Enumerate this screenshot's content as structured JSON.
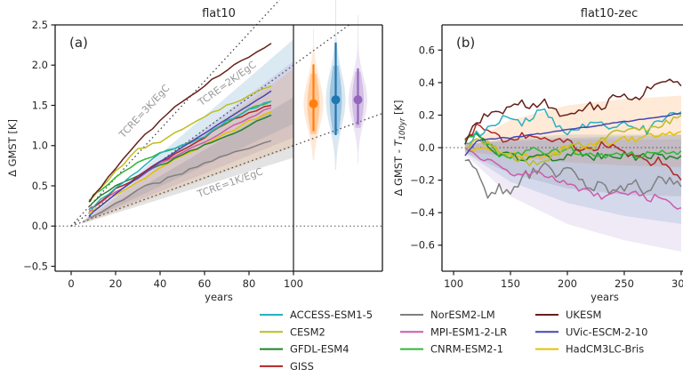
{
  "chart_data": [
    {
      "type": "line",
      "id": "a",
      "panel_label": "(a)",
      "title": "flat10",
      "xlabel": "years",
      "ylabel": "Δ GMST [K]",
      "xlim": [
        -7.2,
        140
      ],
      "ylim": [
        -0.561,
        2.5
      ],
      "xticks": {
        "values": [
          0,
          20,
          40,
          60,
          80,
          100
        ],
        "labels": [
          "0",
          "20",
          "40",
          "60",
          "80",
          "100"
        ]
      },
      "yticks": {
        "values": [
          -0.5,
          0.0,
          0.5,
          1.0,
          1.5,
          2.0,
          2.5
        ],
        "labels": [
          "−0.5",
          "0.0",
          "0.5",
          "1.0",
          "1.5",
          "2.0",
          "2.5"
        ]
      },
      "zero_line": 0.0,
      "vline_year": 100,
      "reference_lines": [
        {
          "label": "TCRE=3K/EgC",
          "slope_K_per_yr": 0.03,
          "start_year": 0,
          "end_year": 94,
          "label_x": 34,
          "label_y": 1.4,
          "label_rot": -47
        },
        {
          "label": "TCRE=2K/EgC",
          "slope_K_per_yr": 0.02,
          "start_year": 0,
          "end_year": 125,
          "label_x": 71,
          "label_y": 1.74,
          "label_rot": -36
        },
        {
          "label": "TCRE=1K/EgC",
          "slope_K_per_yr": 0.01,
          "start_year": 0,
          "end_year": 140,
          "label_x": 72,
          "label_y": 0.5,
          "label_rot": -20
        }
      ],
      "bands": [
        {
          "name": "band-blue",
          "color": "#1f77b4",
          "alpha": 0.16,
          "x": [
            5,
            100
          ],
          "top": [
            0.06,
            2.32
          ],
          "bottom": [
            0.04,
            1.27
          ]
        },
        {
          "name": "band-purple",
          "color": "#9467bd",
          "alpha": 0.16,
          "x": [
            5,
            100
          ],
          "top": [
            0.05,
            2.05
          ],
          "bottom": [
            0.04,
            1.1
          ]
        },
        {
          "name": "band-tan",
          "color": "#ff7f0e",
          "alpha": 0.15,
          "x": [
            5,
            100
          ],
          "top": [
            0.05,
            1.95
          ],
          "bottom": [
            0.03,
            0.98
          ]
        },
        {
          "name": "band-gray",
          "color": "#808080",
          "alpha": 0.22,
          "x": [
            5,
            100
          ],
          "top": [
            0.05,
            1.6
          ],
          "bottom": [
            0.03,
            0.85
          ]
        }
      ],
      "violins": [
        {
          "name": "violin-orange",
          "color": "#ff7f0e",
          "center_year": 109,
          "median": 1.52,
          "bar": [
            1.18,
            2.01
          ],
          "range": [
            0.82,
            2.45
          ],
          "sigma": 0.3,
          "max_width_years": 4.4
        },
        {
          "name": "violin-blue",
          "color": "#1f77b4",
          "center_year": 119,
          "median": 1.57,
          "bar": [
            1.13,
            2.28
          ],
          "range": [
            0.7,
            3.05
          ],
          "sigma": 0.34,
          "max_width_years": 4.4
        },
        {
          "name": "violin-purple",
          "color": "#9467bd",
          "center_year": 129,
          "median": 1.57,
          "bar": [
            1.26,
            1.96
          ],
          "range": [
            0.78,
            2.62
          ],
          "sigma": 0.28,
          "max_width_years": 4.2
        }
      ],
      "x": [
        8,
        10,
        20,
        30,
        40,
        50,
        60,
        70,
        80,
        90
      ],
      "series": [
        {
          "name": "NorESM2-LM",
          "color": "#7f7f7f",
          "jitter": 0.022,
          "values": [
            0.1,
            0.12,
            0.28,
            0.45,
            0.55,
            0.65,
            0.78,
            0.88,
            0.98,
            1.06
          ]
        },
        {
          "name": "HadCM3LC-Bris",
          "color": "#e5c100",
          "jitter": 0.015,
          "values": [
            0.15,
            0.2,
            0.38,
            0.55,
            0.72,
            0.88,
            1.0,
            1.15,
            1.3,
            1.42
          ]
        },
        {
          "name": "GFDL-ESM4",
          "color": "#1e8229",
          "jitter": 0.015,
          "values": [
            0.25,
            0.3,
            0.5,
            0.62,
            0.75,
            0.88,
            1.0,
            1.12,
            1.25,
            1.38
          ]
        },
        {
          "name": "MPI-ESM1-2-LR",
          "color": "#cd5ba9",
          "jitter": 0.013,
          "values": [
            0.18,
            0.22,
            0.42,
            0.6,
            0.78,
            0.92,
            1.05,
            1.2,
            1.35,
            1.47
          ]
        },
        {
          "name": "GISS",
          "color": "#b02525",
          "jitter": 0.016,
          "values": [
            0.2,
            0.25,
            0.45,
            0.62,
            0.8,
            0.95,
            1.1,
            1.28,
            1.4,
            1.5
          ]
        },
        {
          "name": "CNRM-ESM2-1",
          "color": "#2eb837",
          "jitter": 0.015,
          "values": [
            0.32,
            0.38,
            0.6,
            0.78,
            0.9,
            1.0,
            1.12,
            1.28,
            1.45,
            1.55
          ]
        },
        {
          "name": "ACCESS-ESM1-5",
          "color": "#2ab0bc",
          "jitter": 0.015,
          "values": [
            0.2,
            0.25,
            0.48,
            0.68,
            0.9,
            1.0,
            1.1,
            1.3,
            1.45,
            1.55
          ]
        },
        {
          "name": "CESM2",
          "color": "#bcbd22",
          "jitter": 0.015,
          "values": [
            0.3,
            0.36,
            0.68,
            0.95,
            1.05,
            1.2,
            1.35,
            1.5,
            1.62,
            1.74
          ]
        },
        {
          "name": "UVic-ESCM-2-10",
          "color": "#4545b2",
          "jitter": 0.003,
          "values": [
            0.12,
            0.18,
            0.4,
            0.6,
            0.8,
            0.98,
            1.15,
            1.33,
            1.5,
            1.68
          ]
        },
        {
          "name": "UKESM",
          "color": "#67201a",
          "jitter": 0.018,
          "values": [
            0.3,
            0.38,
            0.72,
            1.05,
            1.3,
            1.55,
            1.75,
            1.95,
            2.1,
            2.27
          ]
        }
      ]
    },
    {
      "type": "line",
      "id": "b",
      "panel_label": "(b)",
      "title": "flat10-zec",
      "xlabel": "years",
      "ylabel_parts": {
        "pre": "Δ GMST - ",
        "t": "T",
        "sub": "100yr",
        "post": " [K]"
      },
      "xlim": [
        89.8,
        302.4
      ],
      "ylim": [
        -0.76,
        0.755
      ],
      "xticks": {
        "values": [
          100,
          150,
          200,
          250,
          300
        ],
        "labels": [
          "100",
          "150",
          "200",
          "250",
          "300"
        ]
      },
      "yticks": {
        "values": [
          -0.6,
          -0.4,
          -0.2,
          0.0,
          0.2,
          0.4,
          0.6
        ],
        "labels": [
          "−0.6",
          "−0.4",
          "−0.2",
          "0.0",
          "0.2",
          "0.4",
          "0.6"
        ]
      },
      "zero_line": 0.0,
      "reference_lines": [],
      "bands": [
        {
          "name": "band-orange",
          "color": "#ff7f0e",
          "alpha": 0.16,
          "x": [
            110,
            150,
            200,
            250,
            300
          ],
          "top": [
            0.02,
            0.17,
            0.26,
            0.3,
            0.32
          ],
          "bottom": [
            -0.02,
            -0.06,
            -0.09,
            -0.11,
            -0.12
          ]
        },
        {
          "name": "band-gray",
          "color": "#808080",
          "alpha": 0.18,
          "x": [
            110,
            150,
            200,
            250,
            300
          ],
          "top": [
            0.02,
            0.06,
            0.08,
            0.08,
            0.08
          ],
          "bottom": [
            -0.03,
            -0.16,
            -0.25,
            -0.29,
            -0.3
          ]
        },
        {
          "name": "band-blue",
          "color": "#1f77b4",
          "alpha": 0.14,
          "x": [
            110,
            150,
            200,
            250,
            300
          ],
          "top": [
            0.02,
            0.05,
            0.06,
            0.07,
            0.08
          ],
          "bottom": [
            -0.03,
            -0.21,
            -0.34,
            -0.42,
            -0.47
          ]
        },
        {
          "name": "band-purple",
          "color": "#9467bd",
          "alpha": 0.14,
          "x": [
            110,
            150,
            200,
            250,
            300
          ],
          "top": [
            0.02,
            0.04,
            0.05,
            0.05,
            0.05
          ],
          "bottom": [
            -0.04,
            -0.3,
            -0.47,
            -0.57,
            -0.64
          ]
        }
      ],
      "violins": [],
      "x": [
        110,
        120,
        130,
        140,
        150,
        160,
        170,
        180,
        190,
        200,
        210,
        220,
        230,
        240,
        250,
        260,
        270,
        280,
        290,
        300
      ],
      "series": [
        {
          "name": "NorESM2-LM",
          "color": "#7f7f7f",
          "jitter": 0.03,
          "values": [
            -0.08,
            -0.15,
            -0.28,
            -0.25,
            -0.3,
            -0.18,
            -0.15,
            -0.12,
            -0.16,
            -0.14,
            -0.18,
            -0.25,
            -0.22,
            -0.28,
            -0.25,
            -0.22,
            -0.28,
            -0.18,
            -0.2,
            -0.24
          ]
        },
        {
          "name": "HadCM3LC-Bris",
          "color": "#e5c100",
          "jitter": 0.02,
          "values": [
            0.0,
            -0.02,
            0.0,
            -0.03,
            -0.05,
            -0.04,
            -0.06,
            -0.05,
            -0.03,
            0.0,
            -0.02,
            0.02,
            0.04,
            0.03,
            0.06,
            0.05,
            0.08,
            0.07,
            0.09,
            0.1
          ]
        },
        {
          "name": "GFDL-ESM4",
          "color": "#1e8229",
          "jitter": 0.022,
          "values": [
            0.05,
            0.1,
            0.0,
            -0.05,
            -0.03,
            -0.08,
            -0.06,
            -0.04,
            -0.07,
            -0.05,
            -0.03,
            -0.06,
            -0.05,
            -0.07,
            -0.04,
            -0.06,
            -0.05,
            -0.04,
            -0.06,
            -0.05
          ]
        },
        {
          "name": "MPI-ESM1-2-LR",
          "color": "#cd5ba9",
          "jitter": 0.02,
          "values": [
            0.0,
            -0.05,
            -0.08,
            -0.12,
            -0.15,
            -0.17,
            -0.15,
            -0.18,
            -0.2,
            -0.22,
            -0.25,
            -0.28,
            -0.3,
            -0.27,
            -0.3,
            -0.28,
            -0.32,
            -0.3,
            -0.35,
            -0.37
          ]
        },
        {
          "name": "GISS",
          "color": "#b02525",
          "jitter": 0.022,
          "values": [
            0.05,
            0.13,
            0.1,
            0.06,
            0.04,
            0.08,
            0.05,
            0.07,
            0.03,
            0.05,
            0.0,
            -0.02,
            0.02,
            0.0,
            -0.03,
            -0.05,
            -0.1,
            -0.08,
            -0.14,
            -0.2
          ]
        },
        {
          "name": "CNRM-ESM2-1",
          "color": "#2eb837",
          "jitter": 0.02,
          "values": [
            0.04,
            0.08,
            0.02,
            -0.04,
            -0.06,
            -0.03,
            -0.01,
            -0.04,
            -0.02,
            0.0,
            -0.03,
            -0.05,
            -0.04,
            -0.06,
            -0.03,
            -0.05,
            -0.04,
            -0.02,
            -0.03,
            -0.02
          ]
        },
        {
          "name": "ACCESS-ESM1-5",
          "color": "#2ab0bc",
          "jitter": 0.025,
          "values": [
            0.03,
            0.08,
            0.12,
            0.16,
            0.2,
            0.14,
            0.2,
            0.22,
            0.13,
            0.1,
            0.12,
            0.16,
            0.15,
            0.13,
            0.16,
            0.14,
            0.1,
            0.16,
            0.2,
            0.22
          ]
        },
        {
          "name": "CESM2",
          "color": "#bcbd22",
          "jitter": 0.022,
          "values": [
            0.0,
            0.05,
            0.02,
            -0.02,
            -0.05,
            -0.08,
            -0.1,
            -0.07,
            -0.04,
            0.0,
            0.02,
            0.0,
            0.04,
            0.08,
            0.1,
            0.12,
            0.1,
            0.14,
            0.16,
            0.2
          ]
        },
        {
          "name": "UVic-ESCM-2-10",
          "color": "#4545b2",
          "jitter": 0.003,
          "values": [
            -0.05,
            0.04,
            0.05,
            0.06,
            0.06,
            0.07,
            0.08,
            0.09,
            0.1,
            0.11,
            0.12,
            0.13,
            0.14,
            0.15,
            0.16,
            0.17,
            0.18,
            0.19,
            0.2,
            0.21
          ]
        },
        {
          "name": "UKESM",
          "color": "#67201a",
          "jitter": 0.025,
          "values": [
            0.02,
            0.15,
            0.2,
            0.22,
            0.24,
            0.28,
            0.25,
            0.28,
            0.22,
            0.19,
            0.22,
            0.26,
            0.25,
            0.3,
            0.33,
            0.3,
            0.36,
            0.38,
            0.41,
            0.38
          ]
        }
      ]
    }
  ],
  "legend": {
    "columns": [
      [
        {
          "label": "ACCESS-ESM1-5",
          "color": "#2ab0bc"
        },
        {
          "label": "CESM2",
          "color": "#bcbd22"
        },
        {
          "label": "GFDL-ESM4",
          "color": "#1e8229"
        },
        {
          "label": "GISS",
          "color": "#b02525"
        }
      ],
      [
        {
          "label": "NorESM2-LM",
          "color": "#7f7f7f"
        },
        {
          "label": "MPI-ESM1-2-LR",
          "color": "#cd5ba9"
        },
        {
          "label": "CNRM-ESM2-1",
          "color": "#2eb837"
        }
      ],
      [
        {
          "label": "UKESM",
          "color": "#67201a"
        },
        {
          "label": "UVic-ESCM-2-10",
          "color": "#4545b2"
        },
        {
          "label": "HadCM3LC-Bris",
          "color": "#e5c100"
        }
      ]
    ]
  },
  "colors": {
    "spine": "#1a1a1a",
    "tick_text": "#262626",
    "reference_line": "#4d4d4d",
    "reference_label": "#999999"
  }
}
